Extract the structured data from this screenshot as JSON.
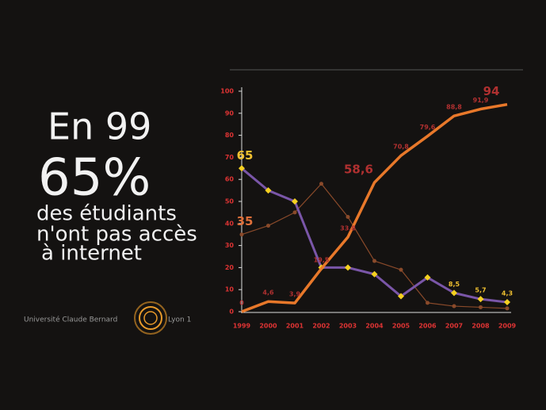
{
  "headline": {
    "lines": [
      "En 99",
      "65%",
      "des étudiants",
      "n'ont pas accès",
      "à internet"
    ]
  },
  "footer": {
    "left": "Université Claude Bernard",
    "right": "Lyon 1"
  },
  "chart_data": {
    "type": "line",
    "categories": [
      "1999",
      "2000",
      "2001",
      "2002",
      "2003",
      "2004",
      "2005",
      "2006",
      "2007",
      "2008",
      "2009"
    ],
    "ylim": [
      0,
      100
    ],
    "yticks": [
      0,
      10,
      20,
      30,
      40,
      50,
      60,
      70,
      80,
      90,
      100
    ],
    "series": [
      {
        "color": "#e8782a",
        "values": [
          0,
          4.6,
          3.9,
          19.5,
          33.8,
          58.6,
          70.8,
          79.6,
          88.8,
          91.9,
          94
        ],
        "value_labels": [
          "0",
          "4,6",
          "3,9",
          "19,5",
          "33,8",
          "58,6",
          "70,8",
          "79,6",
          "88,8",
          "91,9",
          "94"
        ]
      },
      {
        "color": "#7a56a8",
        "values": [
          65,
          55,
          50,
          20,
          20,
          17,
          7,
          15.5,
          8.5,
          5.7,
          4.3
        ],
        "value_labels": [
          "65",
          null,
          null,
          null,
          null,
          null,
          null,
          null,
          "8,5",
          "5,7",
          "4,3"
        ]
      },
      {
        "color": "#8a4a2a",
        "values": [
          35,
          39,
          45,
          58,
          43,
          23,
          19,
          4,
          2.5,
          2,
          1.5
        ],
        "value_labels": [
          "35",
          null,
          null,
          null,
          null,
          null,
          null,
          null,
          null,
          null,
          null
        ]
      }
    ]
  }
}
